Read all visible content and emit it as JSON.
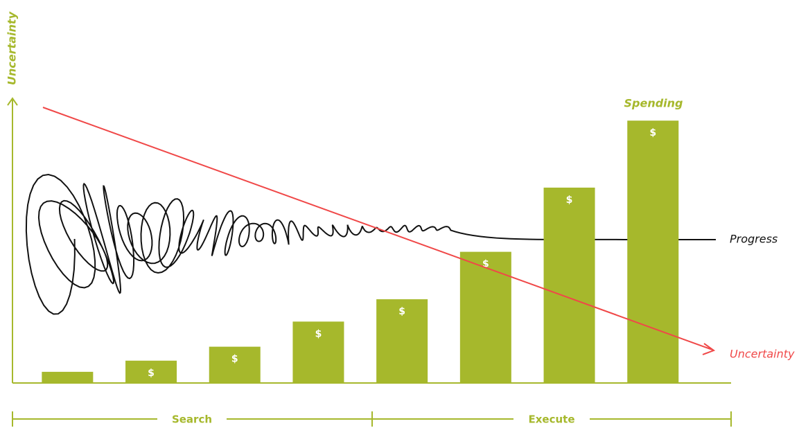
{
  "chart_data": {
    "type": "bar",
    "y_label": "Uncertainty",
    "categories": [
      null,
      null,
      null,
      null,
      null,
      null,
      null,
      null
    ],
    "values": [
      4,
      8,
      13,
      22,
      30,
      47,
      70,
      94
    ],
    "bar_symbol": "$",
    "color": "#a6b82c",
    "ylim": [
      0,
      100
    ],
    "series_label": "Spending",
    "progress_label": "Progress",
    "uncertainty_label": "Uncertainty",
    "phases": [
      "Search",
      "Execute"
    ]
  }
}
